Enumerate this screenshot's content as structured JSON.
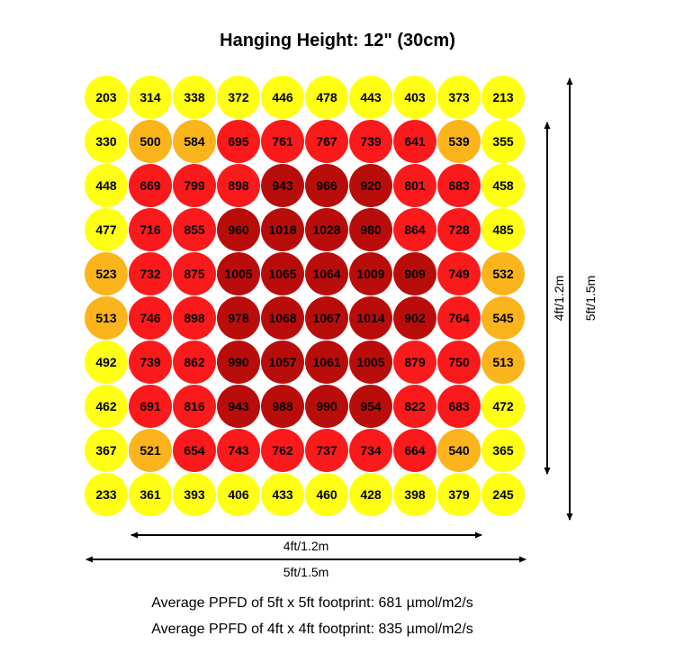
{
  "chart_data": {
    "type": "heatmap",
    "title": "Hanging Height: 12\" (30cm)",
    "grid": [
      [
        203,
        314,
        338,
        372,
        446,
        478,
        443,
        403,
        373,
        213
      ],
      [
        330,
        500,
        584,
        695,
        761,
        767,
        739,
        641,
        539,
        355
      ],
      [
        448,
        669,
        799,
        898,
        943,
        966,
        920,
        801,
        683,
        458
      ],
      [
        477,
        716,
        855,
        960,
        1018,
        1028,
        980,
        864,
        728,
        485
      ],
      [
        523,
        732,
        875,
        1005,
        1065,
        1064,
        1009,
        909,
        749,
        532
      ],
      [
        513,
        746,
        898,
        978,
        1068,
        1067,
        1014,
        902,
        764,
        545
      ],
      [
        492,
        739,
        862,
        990,
        1057,
        1061,
        1005,
        879,
        750,
        513
      ],
      [
        462,
        691,
        816,
        943,
        988,
        990,
        954,
        822,
        683,
        472
      ],
      [
        367,
        521,
        654,
        743,
        762,
        737,
        734,
        664,
        540,
        365
      ],
      [
        233,
        361,
        393,
        406,
        433,
        460,
        428,
        398,
        379,
        245
      ]
    ],
    "color_scale": [
      {
        "max": 500,
        "color": "#ffff14"
      },
      {
        "max": 600,
        "color": "#fbb41b"
      },
      {
        "max": 900,
        "color": "#fb1a1b"
      },
      {
        "max": 99999,
        "color": "#b90d0c"
      }
    ],
    "dimensions": {
      "horizontal_inner": "4ft/1.2m",
      "horizontal_outer": "5ft/1.5m",
      "vertical_inner": "4ft/1.2m",
      "vertical_outer": "5ft/1.5m"
    }
  },
  "footer": {
    "line1": "Average PPFD of 5ft x 5ft footprint: 681 µmol/m2/s",
    "line2": "Average PPFD of 4ft x 4ft footprint: 835 µmol/m2/s"
  }
}
